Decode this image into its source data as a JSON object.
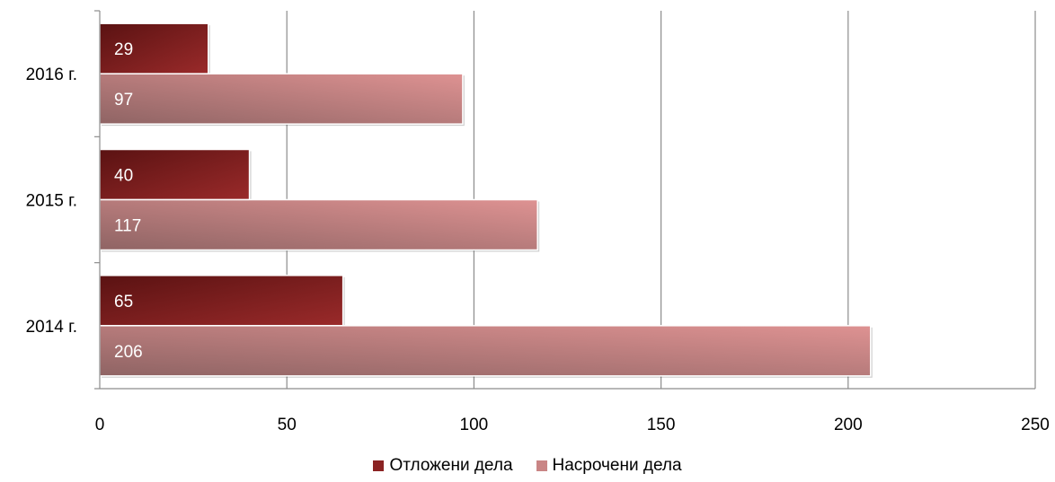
{
  "chart_data": {
    "type": "bar",
    "orientation": "horizontal",
    "categories": [
      "2016 г.",
      "2015 г.",
      "2014 г."
    ],
    "series": [
      {
        "name": "Отложени дела",
        "values": [
          29,
          40,
          65
        ],
        "color": "#8b2323"
      },
      {
        "name": "Насрочени дела",
        "values": [
          97,
          117,
          206
        ],
        "color": "#c98585"
      }
    ],
    "xlim": [
      0,
      250
    ],
    "x_ticks": [
      0,
      50,
      100,
      150,
      200,
      250
    ],
    "grid": true,
    "legend_position": "bottom",
    "data_labels": true
  }
}
